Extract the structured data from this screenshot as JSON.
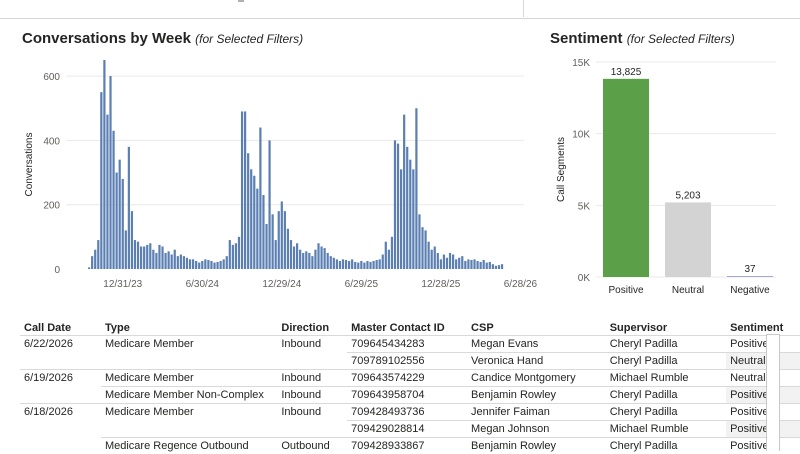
{
  "left_chart": {
    "title": "Conversations by Week",
    "subtitle": "(for Selected Filters)",
    "chart_data": {
      "type": "bar",
      "ylabel": "Conversations",
      "ylim": [
        0,
        650
      ],
      "yticks": [
        0,
        200,
        400,
        600
      ],
      "xtick_labels": [
        "12/31/23",
        "6/30/24",
        "12/29/24",
        "6/29/25",
        "12/28/25",
        "6/28/26"
      ],
      "xtick_index": [
        11,
        37,
        63,
        89,
        115,
        141
      ],
      "bar_color": "#5b7fb2",
      "values": [
        5,
        40,
        60,
        90,
        550,
        650,
        480,
        600,
        430,
        300,
        340,
        280,
        120,
        380,
        180,
        90,
        85,
        70,
        70,
        75,
        80,
        60,
        50,
        75,
        70,
        50,
        55,
        45,
        60,
        40,
        45,
        40,
        35,
        30,
        30,
        25,
        20,
        25,
        30,
        28,
        25,
        20,
        22,
        25,
        30,
        40,
        90,
        75,
        80,
        100,
        490,
        490,
        360,
        310,
        290,
        250,
        440,
        230,
        140,
        400,
        170,
        90,
        180,
        210,
        180,
        125,
        90,
        70,
        80,
        60,
        50,
        55,
        50,
        40,
        60,
        80,
        70,
        65,
        50,
        40,
        35,
        30,
        25,
        30,
        28,
        25,
        30,
        22,
        20,
        25,
        20,
        25,
        22,
        25,
        28,
        30,
        45,
        85,
        60,
        100,
        400,
        390,
        310,
        480,
        380,
        340,
        310,
        500,
        170,
        130,
        120,
        85,
        60,
        70,
        50,
        30,
        45,
        35,
        50,
        45,
        30,
        35,
        40,
        25,
        30,
        28,
        30,
        25,
        22,
        28,
        20,
        22,
        15,
        10,
        12,
        15
      ]
    }
  },
  "right_chart": {
    "title": "Sentiment",
    "subtitle": "(for Selected Filters)",
    "chart_data": {
      "type": "bar",
      "ylabel": "Call Segments",
      "ylim": [
        0,
        15000
      ],
      "yticks": [
        0,
        5000,
        10000,
        15000
      ],
      "ytick_labels": [
        "0K",
        "5K",
        "10K",
        "15K"
      ],
      "categories": [
        "Positive",
        "Neutral",
        "Negative"
      ],
      "values": [
        13825,
        5203,
        37
      ],
      "value_labels": [
        "13,825",
        "5,203",
        "37"
      ],
      "colors": [
        "#5ba048",
        "#d3d3d3",
        "#a8a8d8"
      ]
    }
  },
  "table": {
    "headers": [
      "Call Date",
      "Type",
      "Direction",
      "Master Contact ID",
      "CSP",
      "Supervisor",
      "Sentiment"
    ],
    "rows": [
      [
        "6/22/2026",
        "Medicare Member",
        "Inbound",
        "709645434283",
        "Megan Evans",
        "Cheryl Padilla",
        "Positive"
      ],
      [
        "",
        "",
        "",
        "709789102556",
        "Veronica Hand",
        "Cheryl Padilla",
        "Neutral"
      ],
      [
        "6/19/2026",
        "Medicare Member",
        "Inbound",
        "709643574229",
        "Candice Montgomery",
        "Michael Rumble",
        "Neutral"
      ],
      [
        "",
        "Medicare Member Non-Complex",
        "Inbound",
        "709643958704",
        "Benjamin Rowley",
        "Cheryl Padilla",
        "Positive"
      ],
      [
        "6/18/2026",
        "Medicare Member",
        "Inbound",
        "709428493736",
        "Jennifer Faiman",
        "Cheryl Padilla",
        "Positive"
      ],
      [
        "",
        "",
        "",
        "709429028814",
        "Megan Johnson",
        "Michael Rumble",
        "Positive"
      ],
      [
        "",
        "Medicare Regence Outbound",
        "Outbound",
        "709428933867",
        "Benjamin Rowley",
        "Cheryl Padilla",
        "Positive"
      ]
    ]
  }
}
